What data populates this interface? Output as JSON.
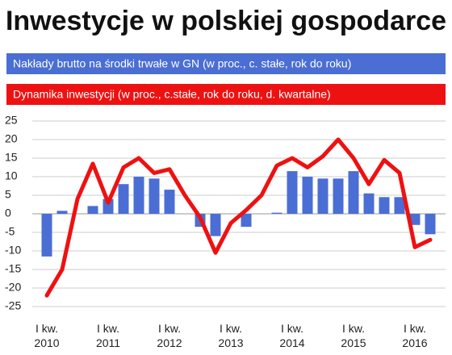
{
  "chart_data": {
    "type": "bar-line",
    "title": "Inwestycje w polskiej gospodarce",
    "categories": [
      "I kw. 2010",
      null,
      null,
      null,
      "I kw. 2011",
      null,
      null,
      null,
      "I kw. 2012",
      null,
      null,
      null,
      "I kw. 2013",
      null,
      null,
      null,
      "I kw. 2014",
      null,
      null,
      null,
      "I kw. 2015",
      null,
      null,
      null,
      "I kw. 2016",
      null
    ],
    "series": [
      {
        "name": "Nakłady brutto na środki trwałe w GN (w proc., c. stałe, rok do roku)",
        "type": "bar",
        "color": "#4a6ed4",
        "values": [
          -11.5,
          0.8,
          null,
          2.1,
          4,
          8,
          10,
          9.5,
          6.5,
          null,
          -3.5,
          -6,
          null,
          -3.5,
          null,
          0.3,
          11.5,
          10,
          9.5,
          9.5,
          11.5,
          5.5,
          4.5,
          4.5,
          -3,
          -5.5
        ]
      },
      {
        "name": "Dynamika inwestycji (w proc., c.stałe, rok do roku, d. kwartalne)",
        "type": "line",
        "color": "#ee1111",
        "values": [
          -22,
          -15,
          4,
          13.5,
          3,
          12.5,
          15,
          11,
          12,
          5,
          -1,
          -10.5,
          -2.5,
          1,
          5,
          13,
          15,
          12.5,
          15.5,
          20,
          15,
          8,
          14.5,
          11,
          -9,
          -7
        ]
      }
    ],
    "ylim": [
      -25,
      25
    ],
    "yticks": [
      -25,
      -20,
      -15,
      -10,
      -5,
      0,
      5,
      10,
      15,
      20,
      25
    ],
    "grid": true
  }
}
